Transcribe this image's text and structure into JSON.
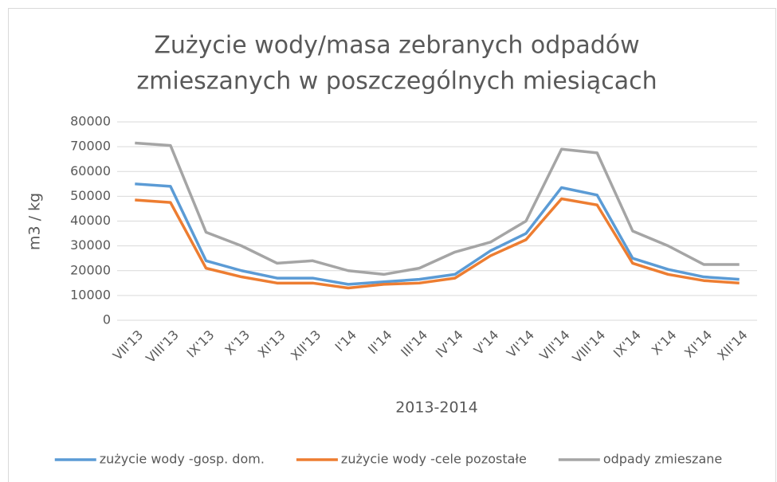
{
  "chart_data": {
    "type": "line",
    "title": [
      "Zużycie wody/masa zebranych odpadów",
      "zmieszanych  w poszczególnych miesiącach"
    ],
    "x_label": "2013-2014",
    "y_label": "m3 / kg",
    "categories": [
      "VII'13",
      "VIII'13",
      "IX'13",
      "X'13",
      "XI'13",
      "XII'13",
      "I'14",
      "II'14",
      "III'14",
      "IV'14",
      "V'14",
      "VI'14",
      "VII'14",
      "VIII'14",
      "IX'14",
      "X'14",
      "XI'14",
      "XII'14"
    ],
    "series": [
      {
        "name": "zużycie wody -gosp. dom.",
        "color": "#5b9bd5",
        "values": [
          55000,
          54000,
          24000,
          20000,
          17000,
          17000,
          14500,
          15500,
          16500,
          18500,
          28000,
          35000,
          53500,
          50500,
          25000,
          20500,
          17500,
          16500
        ]
      },
      {
        "name": "zużycie wody -cele pozostałe",
        "color": "#ed7d31",
        "values": [
          48500,
          47500,
          21000,
          17500,
          15000,
          15000,
          13000,
          14500,
          15000,
          17000,
          26000,
          32500,
          49000,
          46500,
          23000,
          18500,
          16000,
          15000
        ]
      },
      {
        "name": "odpady zmieszane",
        "color": "#a5a5a5",
        "values": [
          71500,
          70500,
          35500,
          30000,
          23000,
          24000,
          20000,
          18500,
          21000,
          27500,
          31500,
          40000,
          69000,
          67500,
          36000,
          30000,
          22500,
          22500
        ]
      }
    ],
    "ylim": [
      0,
      80000
    ],
    "yticks": [
      0,
      10000,
      20000,
      30000,
      40000,
      50000,
      60000,
      70000,
      80000
    ],
    "grid": true,
    "legend": "bottom"
  }
}
